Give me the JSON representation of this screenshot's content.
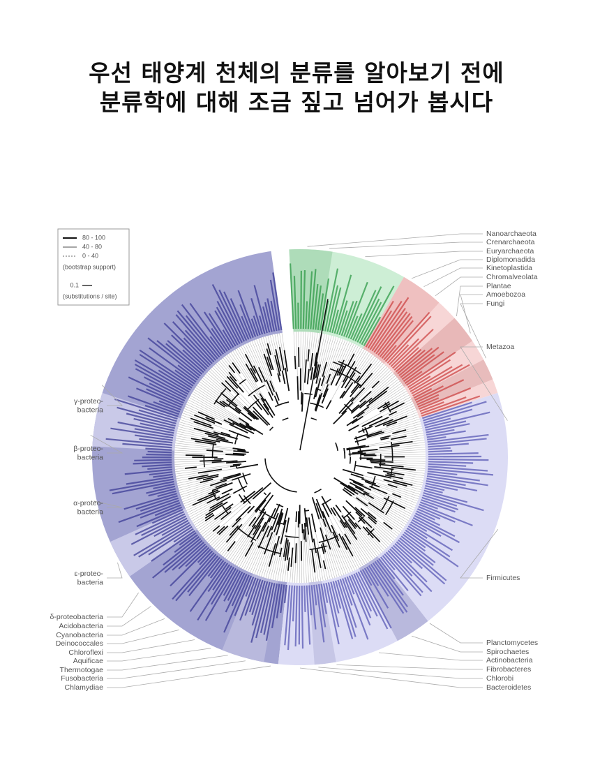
{
  "header": {
    "title_lines": [
      "우선 태양계 천체의 분류를 알아보기 전에",
      "분류학에 대해 조금 짚고 넘어가 봅시다"
    ]
  },
  "legend": {
    "lines": [
      "80 - 100",
      "40 - 80",
      "0 - 40"
    ],
    "note": "(bootstrap support)",
    "scale": "0.1",
    "scale_note": "(substitutions / site)"
  },
  "right_labels": [
    "Nanoarchaeota",
    "Crenarchaeota",
    "Euryarchaeota",
    "Diplomonadida",
    "Kinetoplastida",
    "Chromalveolata",
    "Plantae",
    "Amoebozoa",
    "Fungi",
    "Metazoa",
    "Firmicutes",
    "Planctomycetes",
    "Spirochaetes",
    "Actinobacteria",
    "Fibrobacteres",
    "Chlorobi",
    "Bacteroidetes"
  ],
  "left_labels": [
    [
      "γ-proteo-",
      "bacteria"
    ],
    [
      "β-proteo-",
      "bacteria"
    ],
    [
      "α-proteo-",
      "bacteria"
    ],
    [
      "ε-proteo-",
      "bacteria"
    ],
    [
      "δ-proteobacteria"
    ],
    [
      "Acidobacteria"
    ],
    [
      "Cyanobacteria"
    ],
    [
      "Deinococcales"
    ],
    [
      "Chloroflexi"
    ],
    [
      "Aquificae"
    ],
    [
      "Thermotogae"
    ],
    [
      "Fusobacteria"
    ],
    [
      "Chlamydiae"
    ]
  ]
}
